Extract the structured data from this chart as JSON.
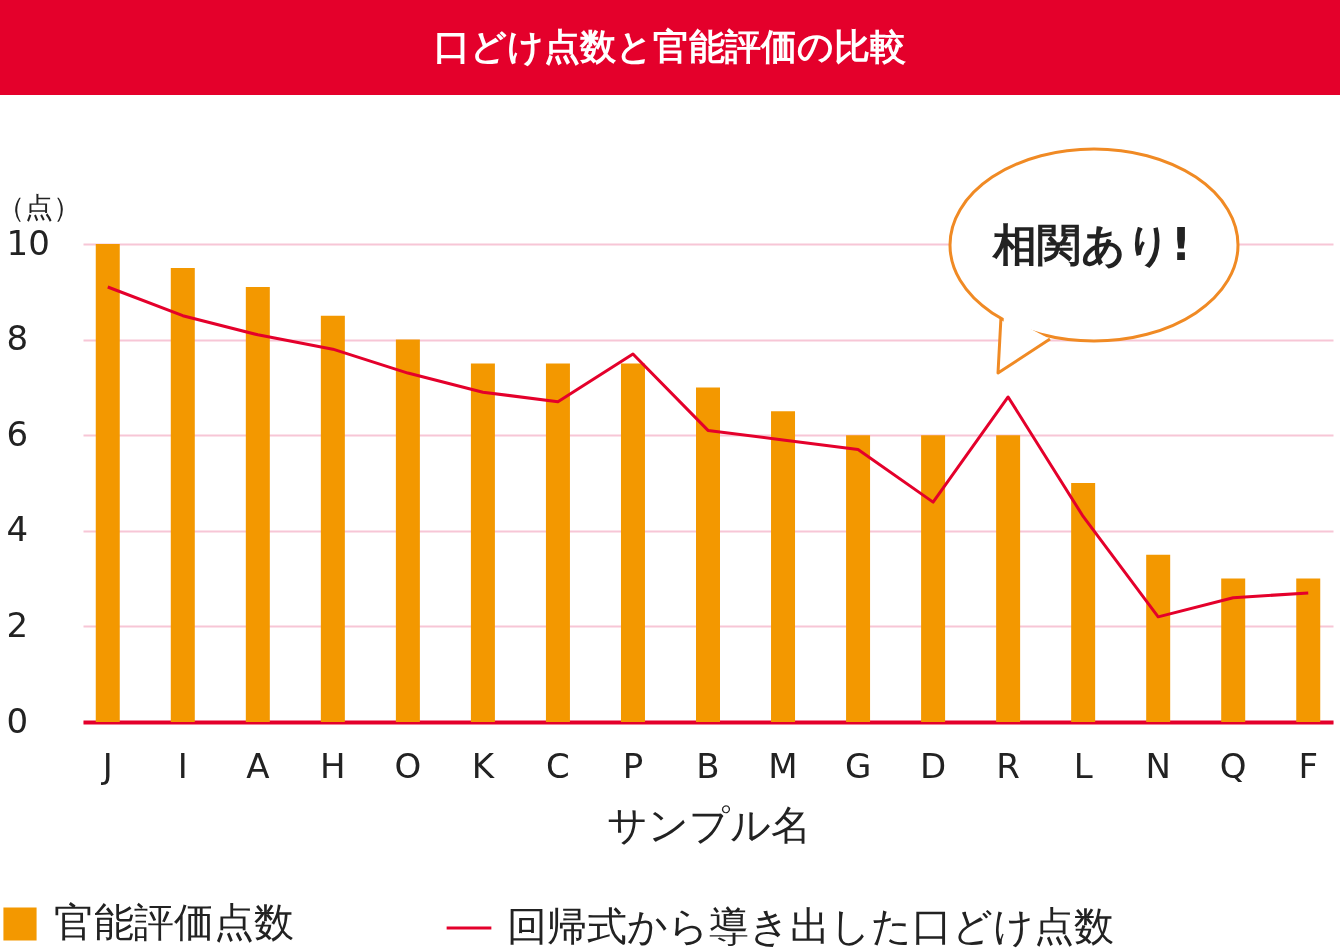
{
  "chart_data": {
    "type": "bar",
    "title": "口どけ点数と官能評価の比較",
    "xlabel": "サンプル名",
    "ylabel": "（点）",
    "categories": [
      "J",
      "I",
      "A",
      "H",
      "O",
      "K",
      "C",
      "P",
      "B",
      "M",
      "G",
      "D",
      "R",
      "L",
      "N",
      "Q",
      "F"
    ],
    "series": [
      {
        "name": "官能評価点数",
        "color": "#f39800",
        "values": [
          10,
          9.5,
          9.1,
          8.5,
          8,
          7.5,
          7.5,
          7.5,
          7,
          6.5,
          6,
          6,
          6,
          5,
          3.5,
          3,
          3
        ]
      },
      {
        "name": "回帰式から導き出した口どけ点数",
        "type": "line",
        "color": "#e4002b",
        "values": [
          9.1,
          8.5,
          8.1,
          7.8,
          7.3,
          6.9,
          6.7,
          7.7,
          6.1,
          5.9,
          5.7,
          4.6,
          6.8,
          4.3,
          2.2,
          2.6,
          2.7
        ]
      }
    ],
    "ylim": [
      0,
      10
    ],
    "yticks": [
      0,
      2,
      4,
      6,
      8,
      10
    ],
    "grid": "y",
    "legend": "bottom",
    "line_style": "solid",
    "marker": "none",
    "annotations": [
      "相関あり!"
    ]
  }
}
